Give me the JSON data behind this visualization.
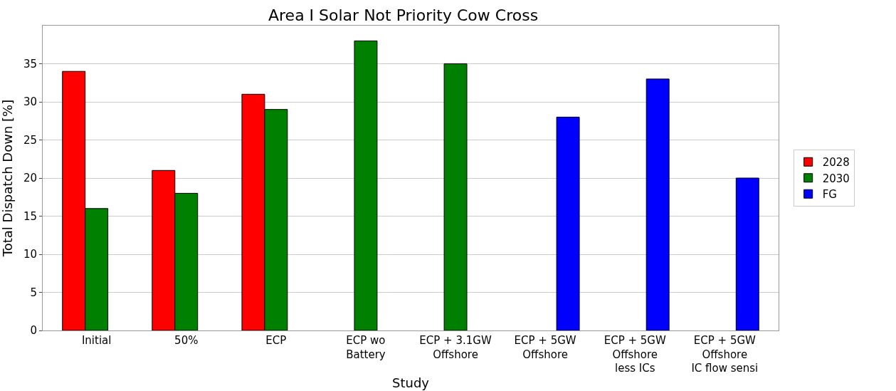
{
  "chart_data": {
    "type": "bar",
    "title": "Area I Solar Not Priority Cow Cross",
    "xlabel": "Study",
    "ylabel": "Total Dispatch Down [%]",
    "categories": [
      "Initial",
      "50%",
      "ECP",
      "ECP wo\nBattery",
      "ECP + 3.1GW\nOffshore",
      "ECP + 5GW\nOffshore",
      "ECP + 5GW\nOffshore\nless ICs",
      "ECP + 5GW\nOffshore\nIC flow sensi"
    ],
    "series": [
      {
        "name": "2028",
        "color": "#ff0000",
        "values": [
          34,
          21,
          31,
          null,
          null,
          null,
          null,
          null
        ]
      },
      {
        "name": "2030",
        "color": "#008000",
        "values": [
          16,
          18,
          29,
          38,
          35,
          null,
          null,
          null
        ]
      },
      {
        "name": "FG",
        "color": "#0000ff",
        "values": [
          null,
          null,
          null,
          null,
          null,
          28,
          33,
          20
        ]
      }
    ],
    "ylim": [
      0,
      40
    ],
    "yticks": [
      0,
      5,
      10,
      15,
      20,
      25,
      30,
      35
    ],
    "grid": "y",
    "legend": "right"
  }
}
